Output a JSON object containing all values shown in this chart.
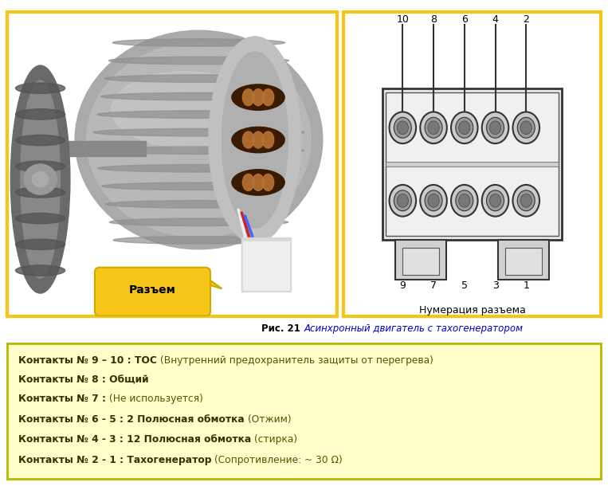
{
  "fig_width": 7.63,
  "fig_height": 6.15,
  "dpi": 100,
  "bg_color": "#ffffff",
  "caption_bold": "Рис. 21 ",
  "caption_italic": "Асинхронный двигатель с тахогенератором",
  "caption_color_bold": "#000000",
  "caption_color_italic": "#0000cc",
  "box_bg": "#ffffcc",
  "box_border": "#b8b800",
  "lines": [
    {
      "bold": "Контакты № 9 – 10 : ТОС ",
      "normal": "(Внутренний предохранитель защиты от перегрева)"
    },
    {
      "bold": "Контакты № 8 : Общий",
      "normal": ""
    },
    {
      "bold": "Контакты № 7 : ",
      "normal": "(Не используется)"
    },
    {
      "bold": "Контакты № 6 - 5 : 2 Полюсная обмотка ",
      "normal": "(Отжим)"
    },
    {
      "bold": "Контакты № 4 - 3 : 12 Полюсная обмотка ",
      "normal": "(стирка)"
    },
    {
      "bold": "Контакты № 2 - 1 : Тахогенератор ",
      "normal": "(Сопротивление: ~ 30 Ω)"
    }
  ],
  "connector_label": "Разъем",
  "connector_bg": "#f5c518",
  "numbering_label": "Нумерация разъема",
  "top_numbers_row": [
    "10",
    "8",
    "6",
    "4",
    "2"
  ],
  "bottom_numbers_row": [
    "9",
    "7",
    "5",
    "3",
    "1"
  ],
  "border_color": "#f5c518",
  "bottom_bar_color": "#f5c518"
}
